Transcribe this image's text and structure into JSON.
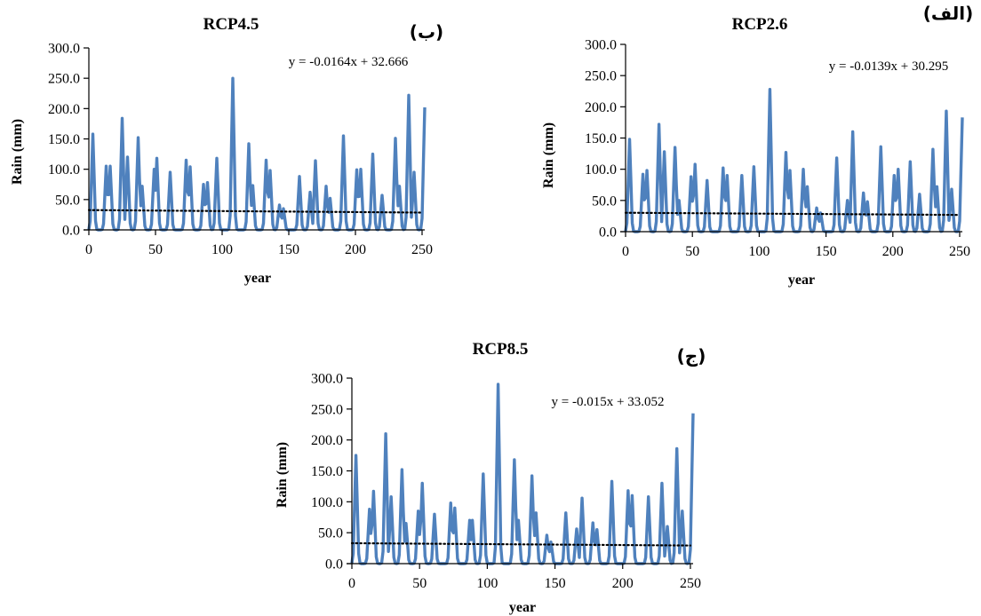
{
  "series_color": "#4f81bd",
  "trend_color": "#000000",
  "chart_data": [
    {
      "type": "line",
      "panel_tag": "(ب)",
      "title": "RCP4.5",
      "xlabel": "year",
      "ylabel": "Rain (mm)",
      "xlim": [
        0,
        252
      ],
      "ylim": [
        0,
        300
      ],
      "xticks": [
        0,
        50,
        100,
        150,
        200,
        250
      ],
      "yticks": [
        "0.0",
        "50.0",
        "100.0",
        "150.0",
        "200.0",
        "250.0",
        "300.0"
      ],
      "grid": false,
      "trendline": {
        "equation": "y = -0.0164x + 32.666",
        "slope": -0.0164,
        "intercept": 32.666
      },
      "peaks": [
        [
          3,
          158
        ],
        [
          13,
          105
        ],
        [
          16,
          105
        ],
        [
          25,
          184
        ],
        [
          29,
          120
        ],
        [
          37,
          152
        ],
        [
          40,
          72
        ],
        [
          49,
          100
        ],
        [
          51,
          118
        ],
        [
          61,
          95
        ],
        [
          73,
          115
        ],
        [
          76,
          104
        ],
        [
          86,
          75
        ],
        [
          89,
          78
        ],
        [
          96,
          118
        ],
        [
          108,
          250
        ],
        [
          120,
          142
        ],
        [
          123,
          73
        ],
        [
          133,
          115
        ],
        [
          136,
          98
        ],
        [
          143,
          41
        ],
        [
          146,
          35
        ],
        [
          158,
          88
        ],
        [
          166,
          62
        ],
        [
          170,
          114
        ],
        [
          178,
          72
        ],
        [
          181,
          52
        ],
        [
          191,
          155
        ],
        [
          201,
          99
        ],
        [
          204,
          100
        ],
        [
          213,
          125
        ],
        [
          220,
          57
        ],
        [
          230,
          151
        ],
        [
          233,
          72
        ],
        [
          240,
          222
        ],
        [
          244,
          95
        ],
        [
          252,
          202
        ]
      ]
    },
    {
      "type": "line",
      "panel_tag": "(الف)",
      "title": "RCP2.6",
      "xlabel": "year",
      "ylabel": "Rain (mm)",
      "xlim": [
        0,
        252
      ],
      "ylim": [
        0,
        300
      ],
      "xticks": [
        0,
        50,
        100,
        150,
        200,
        250
      ],
      "yticks": [
        "0.0",
        "50.0",
        "100.0",
        "150.0",
        "200.0",
        "250.0",
        "300.0"
      ],
      "grid": false,
      "trendline": {
        "equation": "y = -0.0139x + 30.295",
        "slope": -0.0139,
        "intercept": 30.295
      },
      "peaks": [
        [
          3,
          148
        ],
        [
          13,
          92
        ],
        [
          16,
          98
        ],
        [
          25,
          172
        ],
        [
          29,
          128
        ],
        [
          37,
          135
        ],
        [
          40,
          50
        ],
        [
          49,
          88
        ],
        [
          52,
          108
        ],
        [
          61,
          82
        ],
        [
          73,
          102
        ],
        [
          76,
          90
        ],
        [
          87,
          90
        ],
        [
          96,
          104
        ],
        [
          108,
          228
        ],
        [
          120,
          127
        ],
        [
          123,
          98
        ],
        [
          133,
          100
        ],
        [
          136,
          72
        ],
        [
          143,
          38
        ],
        [
          146,
          30
        ],
        [
          158,
          118
        ],
        [
          166,
          50
        ],
        [
          170,
          160
        ],
        [
          178,
          62
        ],
        [
          181,
          48
        ],
        [
          191,
          136
        ],
        [
          201,
          90
        ],
        [
          204,
          100
        ],
        [
          213,
          112
        ],
        [
          220,
          60
        ],
        [
          230,
          132
        ],
        [
          233,
          72
        ],
        [
          240,
          193
        ],
        [
          244,
          68
        ],
        [
          252,
          183
        ]
      ]
    },
    {
      "type": "line",
      "panel_tag": "(ج)",
      "title": "RCP8.5",
      "xlabel": "year",
      "ylabel": "Rain (mm)",
      "xlim": [
        0,
        252
      ],
      "ylim": [
        0,
        300
      ],
      "xticks": [
        0,
        50,
        100,
        150,
        200,
        250
      ],
      "yticks": [
        "0.0",
        "50.0",
        "100.0",
        "150.0",
        "200.0",
        "250.0",
        "300.0"
      ],
      "grid": false,
      "trendline": {
        "equation": "y = -0.015x + 33.052",
        "slope": -0.015,
        "intercept": 33.052
      },
      "peaks": [
        [
          3,
          175
        ],
        [
          13,
          88
        ],
        [
          16,
          117
        ],
        [
          25,
          210
        ],
        [
          29,
          108
        ],
        [
          37,
          152
        ],
        [
          40,
          65
        ],
        [
          49,
          85
        ],
        [
          52,
          130
        ],
        [
          61,
          80
        ],
        [
          73,
          98
        ],
        [
          76,
          90
        ],
        [
          87,
          70
        ],
        [
          89,
          70
        ],
        [
          97,
          145
        ],
        [
          108,
          290
        ],
        [
          120,
          168
        ],
        [
          123,
          70
        ],
        [
          133,
          142
        ],
        [
          136,
          82
        ],
        [
          144,
          46
        ],
        [
          147,
          35
        ],
        [
          158,
          82
        ],
        [
          166,
          56
        ],
        [
          170,
          106
        ],
        [
          178,
          66
        ],
        [
          181,
          55
        ],
        [
          192,
          133
        ],
        [
          204,
          118
        ],
        [
          207,
          110
        ],
        [
          219,
          108
        ],
        [
          229,
          130
        ],
        [
          233,
          60
        ],
        [
          240,
          186
        ],
        [
          244,
          85
        ],
        [
          252,
          243
        ]
      ]
    }
  ]
}
